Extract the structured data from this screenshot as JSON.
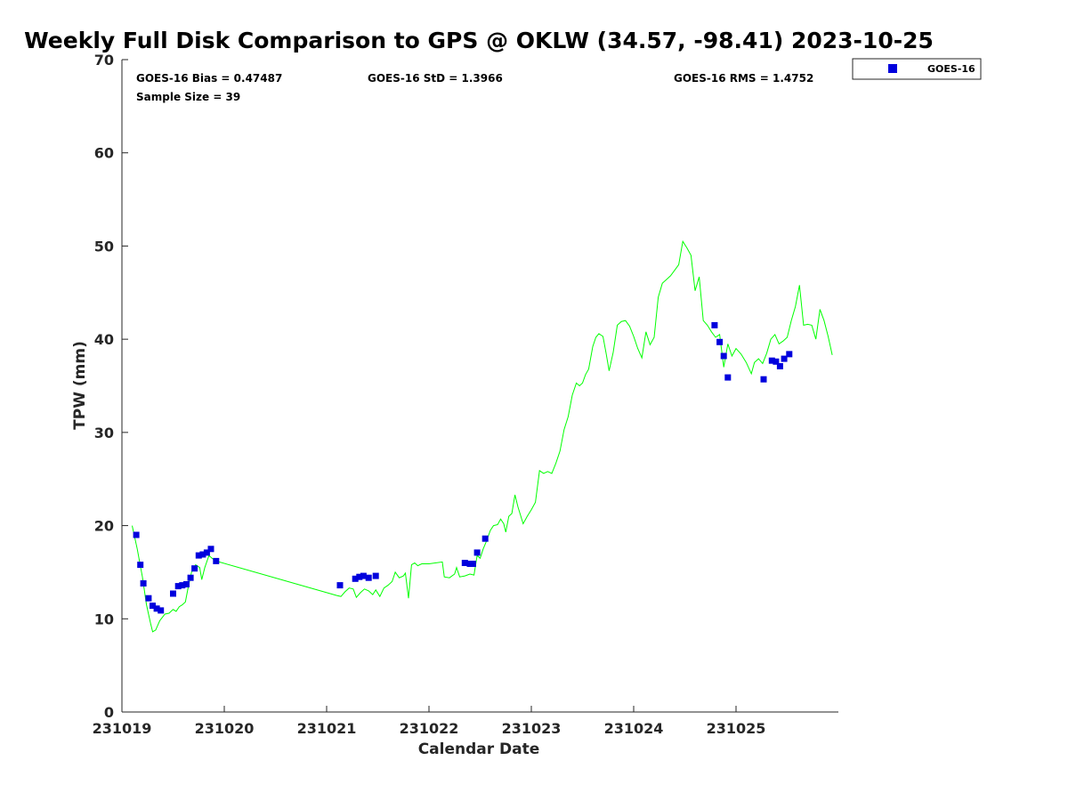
{
  "chart_data": {
    "type": "scatter",
    "title": "Weekly Full Disk Comparison to GPS @ OKLW (34.57, -98.41) 2023-10-25",
    "xlabel": "Calendar Date",
    "ylabel": "TPW (mm)",
    "x_unit": "days",
    "xlim": [
      231019,
      231026
    ],
    "x_ticks": [
      231019,
      231020,
      231021,
      231022,
      231023,
      231024,
      231025
    ],
    "x_tick_labels": [
      "231019",
      "231020",
      "231021",
      "231022",
      "231023",
      "231024",
      "231025"
    ],
    "ylim": [
      0,
      70
    ],
    "y_ticks": [
      0,
      10,
      20,
      30,
      40,
      50,
      60,
      70
    ],
    "y_tick_labels": [
      "0",
      "10",
      "20",
      "30",
      "40",
      "50",
      "60",
      "70"
    ],
    "grid": false,
    "stats": {
      "bias": "GOES-16 Bias = 0.47487",
      "std": "GOES-16 StD = 1.3966",
      "rms": "GOES-16 RMS = 1.4752",
      "sample": "Sample Size = 39"
    },
    "legend": {
      "position": "top-right",
      "entries": [
        "GOES-16"
      ]
    },
    "series": [
      {
        "name": "GOES-16",
        "kind": "scatter",
        "color": "#0000dd",
        "marker": "square",
        "points": [
          [
            231019.14,
            19.0
          ],
          [
            231019.18,
            15.8
          ],
          [
            231019.21,
            13.8
          ],
          [
            231019.26,
            12.2
          ],
          [
            231019.3,
            11.4
          ],
          [
            231019.34,
            11.1
          ],
          [
            231019.38,
            10.9
          ],
          [
            231019.5,
            12.7
          ],
          [
            231019.55,
            13.5
          ],
          [
            231019.59,
            13.6
          ],
          [
            231019.63,
            13.7
          ],
          [
            231019.67,
            14.4
          ],
          [
            231019.71,
            15.4
          ],
          [
            231019.75,
            16.8
          ],
          [
            231019.79,
            16.9
          ],
          [
            231019.83,
            17.1
          ],
          [
            231019.87,
            17.5
          ],
          [
            231019.92,
            16.2
          ],
          [
            231021.13,
            13.6
          ],
          [
            231021.28,
            14.3
          ],
          [
            231021.32,
            14.5
          ],
          [
            231021.36,
            14.6
          ],
          [
            231021.41,
            14.4
          ],
          [
            231021.48,
            14.6
          ],
          [
            231022.35,
            16.0
          ],
          [
            231022.4,
            15.9
          ],
          [
            231022.43,
            15.9
          ],
          [
            231022.47,
            17.1
          ],
          [
            231022.55,
            18.6
          ],
          [
            231024.79,
            41.5
          ],
          [
            231024.84,
            39.7
          ],
          [
            231024.88,
            38.2
          ],
          [
            231024.92,
            35.9
          ],
          [
            231025.27,
            35.7
          ],
          [
            231025.35,
            37.7
          ],
          [
            231025.39,
            37.6
          ],
          [
            231025.43,
            37.1
          ],
          [
            231025.47,
            37.9
          ],
          [
            231025.52,
            38.4
          ]
        ]
      },
      {
        "kind": "line",
        "color": "#00ff00",
        "points": [
          [
            231019.1,
            20.0
          ],
          [
            231019.15,
            17.5
          ],
          [
            231019.2,
            14.5
          ],
          [
            231019.24,
            11.5
          ],
          [
            231019.28,
            9.5
          ],
          [
            231019.3,
            8.6
          ],
          [
            231019.33,
            8.8
          ],
          [
            231019.37,
            9.8
          ],
          [
            231019.42,
            10.5
          ],
          [
            231019.46,
            10.6
          ],
          [
            231019.5,
            11.0
          ],
          [
            231019.53,
            10.8
          ],
          [
            231019.56,
            11.3
          ],
          [
            231019.59,
            11.5
          ],
          [
            231019.62,
            11.8
          ],
          [
            231019.65,
            13.5
          ],
          [
            231019.68,
            15.0
          ],
          [
            231019.72,
            15.8
          ],
          [
            231019.76,
            15.5
          ],
          [
            231019.78,
            14.2
          ],
          [
            231019.81,
            15.5
          ],
          [
            231019.85,
            16.8
          ],
          [
            231019.88,
            16.5
          ],
          [
            231019.92,
            16.2
          ],
          [
            231021.1,
            12.5
          ],
          [
            231021.14,
            12.4
          ],
          [
            231021.18,
            12.9
          ],
          [
            231021.22,
            13.3
          ],
          [
            231021.26,
            13.2
          ],
          [
            231021.29,
            12.3
          ],
          [
            231021.33,
            12.8
          ],
          [
            231021.37,
            13.2
          ],
          [
            231021.41,
            13.0
          ],
          [
            231021.45,
            12.6
          ],
          [
            231021.48,
            13.1
          ],
          [
            231021.52,
            12.4
          ],
          [
            231021.56,
            13.3
          ],
          [
            231021.6,
            13.6
          ],
          [
            231021.64,
            14.0
          ],
          [
            231021.67,
            15.0
          ],
          [
            231021.71,
            14.4
          ],
          [
            231021.75,
            14.6
          ],
          [
            231021.77,
            14.9
          ],
          [
            231021.8,
            12.2
          ],
          [
            231021.83,
            15.8
          ],
          [
            231021.86,
            16.0
          ],
          [
            231021.89,
            15.7
          ],
          [
            231021.93,
            15.9
          ],
          [
            231022.0,
            15.9
          ],
          [
            231022.13,
            16.1
          ],
          [
            231022.15,
            14.5
          ],
          [
            231022.2,
            14.4
          ],
          [
            231022.25,
            14.8
          ],
          [
            231022.27,
            15.5
          ],
          [
            231022.3,
            14.5
          ],
          [
            231022.35,
            14.6
          ],
          [
            231022.4,
            14.8
          ],
          [
            231022.44,
            14.7
          ],
          [
            231022.47,
            16.8
          ],
          [
            231022.5,
            16.5
          ],
          [
            231022.53,
            17.5
          ],
          [
            231022.56,
            18.3
          ],
          [
            231022.6,
            19.5
          ],
          [
            231022.63,
            20.0
          ],
          [
            231022.67,
            20.1
          ],
          [
            231022.7,
            20.7
          ],
          [
            231022.73,
            20.2
          ],
          [
            231022.75,
            19.3
          ],
          [
            231022.78,
            21.0
          ],
          [
            231022.81,
            21.3
          ],
          [
            231022.84,
            23.3
          ],
          [
            231022.87,
            22.0
          ],
          [
            231022.92,
            20.2
          ],
          [
            231022.96,
            21.0
          ],
          [
            231023.0,
            21.7
          ],
          [
            231023.04,
            22.5
          ],
          [
            231023.08,
            25.9
          ],
          [
            231023.12,
            25.6
          ],
          [
            231023.16,
            25.8
          ],
          [
            231023.2,
            25.6
          ],
          [
            231023.24,
            26.7
          ],
          [
            231023.28,
            28.0
          ],
          [
            231023.32,
            30.3
          ],
          [
            231023.36,
            31.7
          ],
          [
            231023.4,
            34.0
          ],
          [
            231023.44,
            35.3
          ],
          [
            231023.47,
            35.0
          ],
          [
            231023.5,
            35.3
          ],
          [
            231023.53,
            36.2
          ],
          [
            231023.56,
            36.8
          ],
          [
            231023.6,
            39.2
          ],
          [
            231023.63,
            40.2
          ],
          [
            231023.66,
            40.6
          ],
          [
            231023.7,
            40.3
          ],
          [
            231023.73,
            38.5
          ],
          [
            231023.76,
            36.6
          ],
          [
            231023.8,
            38.6
          ],
          [
            231023.84,
            41.5
          ],
          [
            231023.88,
            41.9
          ],
          [
            231023.92,
            42.0
          ],
          [
            231023.96,
            41.4
          ],
          [
            231024.0,
            40.3
          ],
          [
            231024.04,
            39.0
          ],
          [
            231024.08,
            38.0
          ],
          [
            231024.12,
            40.8
          ],
          [
            231024.16,
            39.4
          ],
          [
            231024.2,
            40.2
          ],
          [
            231024.24,
            44.5
          ],
          [
            231024.28,
            46.0
          ],
          [
            231024.32,
            46.4
          ],
          [
            231024.36,
            46.8
          ],
          [
            231024.4,
            47.4
          ],
          [
            231024.44,
            48.0
          ],
          [
            231024.48,
            50.5
          ],
          [
            231024.52,
            49.8
          ],
          [
            231024.56,
            49.0
          ],
          [
            231024.6,
            45.2
          ],
          [
            231024.64,
            46.7
          ],
          [
            231024.68,
            42.0
          ],
          [
            231024.72,
            41.5
          ],
          [
            231024.76,
            40.8
          ],
          [
            231024.8,
            40.2
          ],
          [
            231024.84,
            40.5
          ],
          [
            231024.88,
            37.0
          ],
          [
            231024.92,
            39.5
          ],
          [
            231024.96,
            38.2
          ],
          [
            231025.0,
            39.0
          ],
          [
            231025.05,
            38.4
          ],
          [
            231025.1,
            37.5
          ],
          [
            231025.15,
            36.3
          ],
          [
            231025.18,
            37.5
          ],
          [
            231025.22,
            37.9
          ],
          [
            231025.26,
            37.4
          ],
          [
            231025.3,
            38.5
          ],
          [
            231025.34,
            40.0
          ],
          [
            231025.38,
            40.5
          ],
          [
            231025.42,
            39.5
          ],
          [
            231025.46,
            39.8
          ],
          [
            231025.5,
            40.2
          ],
          [
            231025.54,
            42.0
          ],
          [
            231025.58,
            43.5
          ],
          [
            231025.62,
            45.8
          ],
          [
            231025.66,
            41.5
          ],
          [
            231025.7,
            41.6
          ],
          [
            231025.74,
            41.5
          ],
          [
            231025.78,
            40.0
          ],
          [
            231025.82,
            43.2
          ],
          [
            231025.86,
            42.0
          ],
          [
            231025.9,
            40.3
          ],
          [
            231025.94,
            38.3
          ]
        ]
      }
    ]
  }
}
